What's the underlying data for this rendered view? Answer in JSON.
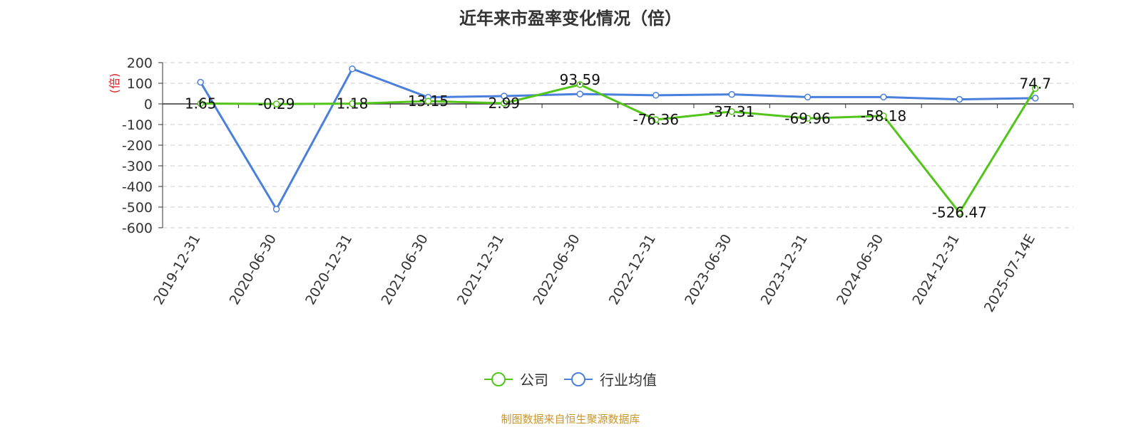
{
  "chart_data": {
    "type": "line",
    "title": "近年来市盈率变化情况（倍）",
    "ylabel": "(倍)",
    "xlabel": "",
    "categories": [
      "2019-12-31",
      "2020-06-30",
      "2020-12-31",
      "2021-06-30",
      "2021-12-31",
      "2022-06-30",
      "2022-12-31",
      "2023-06-30",
      "2023-12-31",
      "2024-06-30",
      "2024-12-31",
      "2025-07-14E"
    ],
    "y_ticks": [
      200,
      100,
      0,
      -100,
      -200,
      -300,
      -400,
      -500,
      -600
    ],
    "ylim": [
      -600,
      200
    ],
    "grid": true,
    "legend_position": "bottom",
    "series": [
      {
        "name": "公司",
        "color": "#52c41a",
        "values": [
          1.65,
          -0.29,
          1.18,
          13.15,
          2.99,
          93.59,
          -76.36,
          -37.31,
          -69.96,
          -58.18,
          -526.47,
          74.7
        ],
        "labels": [
          "1.65",
          "-0.29",
          "1.18",
          "13.15",
          "2.99",
          "93.59",
          "-76.36",
          "-37.31",
          "-69.96",
          "-58.18",
          "-526.47",
          "74.7"
        ]
      },
      {
        "name": "行业均值",
        "color": "#4a7fdc",
        "values": [
          105,
          -510,
          170,
          32,
          38,
          48,
          42,
          46,
          33,
          33,
          22,
          28
        ]
      }
    ],
    "source": "制图数据来自恒生聚源数据库",
    "source_color": "#c8962e",
    "ylabel_color": "#e02020"
  }
}
